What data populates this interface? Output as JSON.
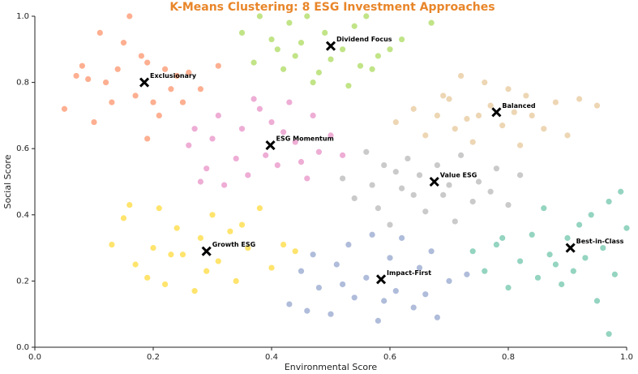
{
  "chart_data": {
    "type": "scatter",
    "title": "K-Means Clustering: 8 ESG Investment Approaches",
    "xlabel": "Environmental Score",
    "ylabel": "Social Score",
    "xlim": [
      0,
      1
    ],
    "ylim": [
      0,
      1
    ],
    "xticks": [
      {
        "value": 0,
        "label": "0.0"
      },
      0.2,
      0.4,
      0.6,
      0.8,
      {
        "value": 1,
        "label": "1.0"
      }
    ],
    "yticks": [
      {
        "value": 0,
        "label": "0.0"
      },
      0.2,
      0.4,
      0.6,
      0.8,
      {
        "value": 1,
        "label": "1.0"
      }
    ],
    "series": [
      {
        "name": "Exclusionary",
        "color": "#fc8d62",
        "centroid": [
          0.185,
          0.8
        ],
        "x": [
          0.05,
          0.07,
          0.08,
          0.09,
          0.1,
          0.11,
          0.12,
          0.13,
          0.14,
          0.16,
          0.17,
          0.18,
          0.19,
          0.2,
          0.21,
          0.22,
          0.23,
          0.25,
          0.26,
          0.28,
          0.31,
          0.15,
          0.19,
          0.24
        ],
        "y": [
          0.72,
          0.82,
          0.85,
          0.81,
          0.68,
          0.95,
          0.8,
          0.74,
          0.84,
          1.0,
          0.76,
          0.88,
          0.86,
          0.74,
          0.7,
          0.84,
          0.78,
          0.74,
          0.83,
          0.78,
          0.85,
          0.92,
          0.63,
          0.82
        ]
      },
      {
        "name": "Dividend Focus",
        "color": "#a6d854",
        "centroid": [
          0.5,
          0.91
        ],
        "x": [
          0.37,
          0.38,
          0.4,
          0.42,
          0.43,
          0.44,
          0.45,
          0.46,
          0.48,
          0.49,
          0.5,
          0.52,
          0.53,
          0.54,
          0.55,
          0.56,
          0.58,
          0.6,
          0.62,
          0.67,
          0.35,
          0.41,
          0.47,
          0.57
        ],
        "y": [
          0.86,
          1.0,
          0.93,
          0.84,
          0.98,
          0.88,
          0.92,
          1.0,
          0.83,
          0.95,
          0.87,
          0.9,
          0.79,
          0.97,
          0.85,
          1.0,
          0.88,
          0.9,
          0.93,
          0.98,
          0.95,
          0.9,
          0.8,
          0.84
        ]
      },
      {
        "name": "Balanced",
        "color": "#e5c494",
        "centroid": [
          0.78,
          0.71
        ],
        "x": [
          0.61,
          0.64,
          0.66,
          0.68,
          0.7,
          0.71,
          0.72,
          0.74,
          0.75,
          0.76,
          0.77,
          0.79,
          0.8,
          0.82,
          0.83,
          0.84,
          0.86,
          0.88,
          0.9,
          0.92,
          0.95,
          0.73,
          0.81,
          0.69
        ],
        "y": [
          0.68,
          0.72,
          0.64,
          0.7,
          0.75,
          0.66,
          0.82,
          0.62,
          0.7,
          0.8,
          0.73,
          0.67,
          0.78,
          0.61,
          0.76,
          0.7,
          0.66,
          0.74,
          0.64,
          0.75,
          0.73,
          0.69,
          0.71,
          0.76
        ]
      },
      {
        "name": "ESG Momentum",
        "color": "#e78ac3",
        "centroid": [
          0.398,
          0.61
        ],
        "x": [
          0.26,
          0.27,
          0.29,
          0.3,
          0.31,
          0.32,
          0.34,
          0.35,
          0.36,
          0.38,
          0.39,
          0.4,
          0.41,
          0.43,
          0.44,
          0.45,
          0.47,
          0.48,
          0.5,
          0.52,
          0.28,
          0.37,
          0.46,
          0.42
        ],
        "y": [
          0.61,
          0.66,
          0.54,
          0.63,
          0.7,
          0.49,
          0.57,
          0.66,
          0.52,
          0.72,
          0.58,
          0.68,
          0.55,
          0.74,
          0.62,
          0.56,
          0.7,
          0.59,
          0.64,
          0.58,
          0.5,
          0.75,
          0.51,
          0.65
        ]
      },
      {
        "name": "Value ESG",
        "color": "#b3b3b3",
        "centroid": [
          0.675,
          0.5
        ],
        "x": [
          0.52,
          0.54,
          0.56,
          0.58,
          0.59,
          0.6,
          0.62,
          0.63,
          0.64,
          0.65,
          0.66,
          0.68,
          0.7,
          0.71,
          0.72,
          0.74,
          0.75,
          0.77,
          0.78,
          0.8,
          0.82,
          0.57,
          0.69,
          0.61
        ],
        "y": [
          0.51,
          0.45,
          0.59,
          0.42,
          0.55,
          0.37,
          0.48,
          0.57,
          0.46,
          0.52,
          0.41,
          0.55,
          0.49,
          0.38,
          0.58,
          0.44,
          0.5,
          0.47,
          0.54,
          0.43,
          0.52,
          0.49,
          0.46,
          0.53
        ]
      },
      {
        "name": "Growth ESG",
        "color": "#ffd92f",
        "centroid": [
          0.29,
          0.29
        ],
        "x": [
          0.13,
          0.15,
          0.16,
          0.17,
          0.19,
          0.2,
          0.21,
          0.22,
          0.24,
          0.25,
          0.27,
          0.28,
          0.29,
          0.3,
          0.31,
          0.33,
          0.34,
          0.36,
          0.38,
          0.4,
          0.42,
          0.44,
          0.23,
          0.35
        ],
        "y": [
          0.31,
          0.39,
          0.43,
          0.25,
          0.21,
          0.3,
          0.42,
          0.19,
          0.36,
          0.28,
          0.17,
          0.33,
          0.23,
          0.4,
          0.26,
          0.35,
          0.2,
          0.3,
          0.42,
          0.24,
          0.31,
          0.29,
          0.28,
          0.37
        ]
      },
      {
        "name": "Impact-First",
        "color": "#8da0cb",
        "centroid": [
          0.585,
          0.205
        ],
        "x": [
          0.43,
          0.45,
          0.47,
          0.48,
          0.5,
          0.51,
          0.53,
          0.54,
          0.56,
          0.57,
          0.58,
          0.6,
          0.61,
          0.62,
          0.64,
          0.65,
          0.67,
          0.68,
          0.7,
          0.73,
          0.52,
          0.59,
          0.66,
          0.46
        ],
        "y": [
          0.13,
          0.23,
          0.28,
          0.18,
          0.1,
          0.25,
          0.31,
          0.15,
          0.21,
          0.34,
          0.08,
          0.27,
          0.17,
          0.33,
          0.12,
          0.24,
          0.29,
          0.09,
          0.2,
          0.22,
          0.19,
          0.14,
          0.16,
          0.11
        ]
      },
      {
        "name": "Best-in-Class",
        "color": "#66c2a5",
        "centroid": [
          0.905,
          0.3
        ],
        "x": [
          0.74,
          0.76,
          0.78,
          0.8,
          0.82,
          0.84,
          0.85,
          0.86,
          0.88,
          0.89,
          0.9,
          0.92,
          0.93,
          0.94,
          0.95,
          0.96,
          0.97,
          0.98,
          0.99,
          1.0,
          0.87,
          0.91,
          0.79,
          0.97
        ],
        "y": [
          0.29,
          0.23,
          0.31,
          0.18,
          0.26,
          0.34,
          0.21,
          0.42,
          0.25,
          0.19,
          0.33,
          0.37,
          0.27,
          0.4,
          0.14,
          0.3,
          0.44,
          0.22,
          0.47,
          0.36,
          0.28,
          0.23,
          0.33,
          0.04
        ]
      }
    ]
  }
}
